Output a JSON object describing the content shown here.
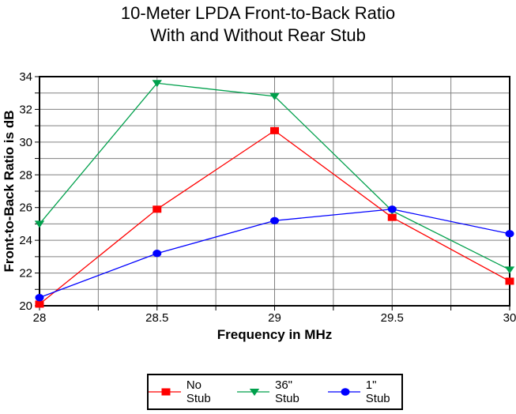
{
  "title": {
    "line1": "10-Meter LPDA Front-to-Back Ratio",
    "line2": "With and Without Rear Stub"
  },
  "chart_data": {
    "type": "line",
    "title": "10-Meter LPDA Front-to-Back Ratio With and Without Rear Stub",
    "xlabel": "Frequency in MHz",
    "ylabel": "Front-to-Back Ratio is dB",
    "x": [
      28,
      28.5,
      29,
      29.5,
      30
    ],
    "series": [
      {
        "name": "No Stub",
        "color": "#FF0000",
        "marker": "square",
        "values": [
          20.1,
          25.9,
          30.7,
          25.4,
          21.5
        ]
      },
      {
        "name": "36\" Stub",
        "color": "#00A04C",
        "marker": "triangle-down",
        "values": [
          25.0,
          33.6,
          32.8,
          25.8,
          22.2
        ]
      },
      {
        "name": "1\" Stub",
        "color": "#0000FF",
        "marker": "circle",
        "values": [
          20.5,
          23.2,
          25.2,
          25.9,
          24.4
        ]
      }
    ],
    "draw_order": [
      1,
      0,
      2
    ],
    "xlim": [
      28,
      30
    ],
    "ylim": [
      20,
      34
    ],
    "x_ticks": [
      {
        "v": 28,
        "label": "28"
      },
      {
        "v": 28.5,
        "label": "28.5"
      },
      {
        "v": 29,
        "label": "29"
      },
      {
        "v": 29.5,
        "label": "29.5"
      },
      {
        "v": 30,
        "label": "30"
      }
    ],
    "y_ticks": [
      {
        "v": 20,
        "label": "20"
      },
      {
        "v": 22,
        "label": "22"
      },
      {
        "v": 24,
        "label": "24"
      },
      {
        "v": 26,
        "label": "26"
      },
      {
        "v": 28,
        "label": "28"
      },
      {
        "v": 30,
        "label": "30"
      },
      {
        "v": 32,
        "label": "32"
      },
      {
        "v": 34,
        "label": "34"
      }
    ],
    "x_minor_step": 0.25,
    "y_minor_step": 1,
    "grid": true,
    "grid_color": "#808080",
    "axis_color": "#000000",
    "background": "#FFFFFF",
    "legend_position": "bottom"
  }
}
